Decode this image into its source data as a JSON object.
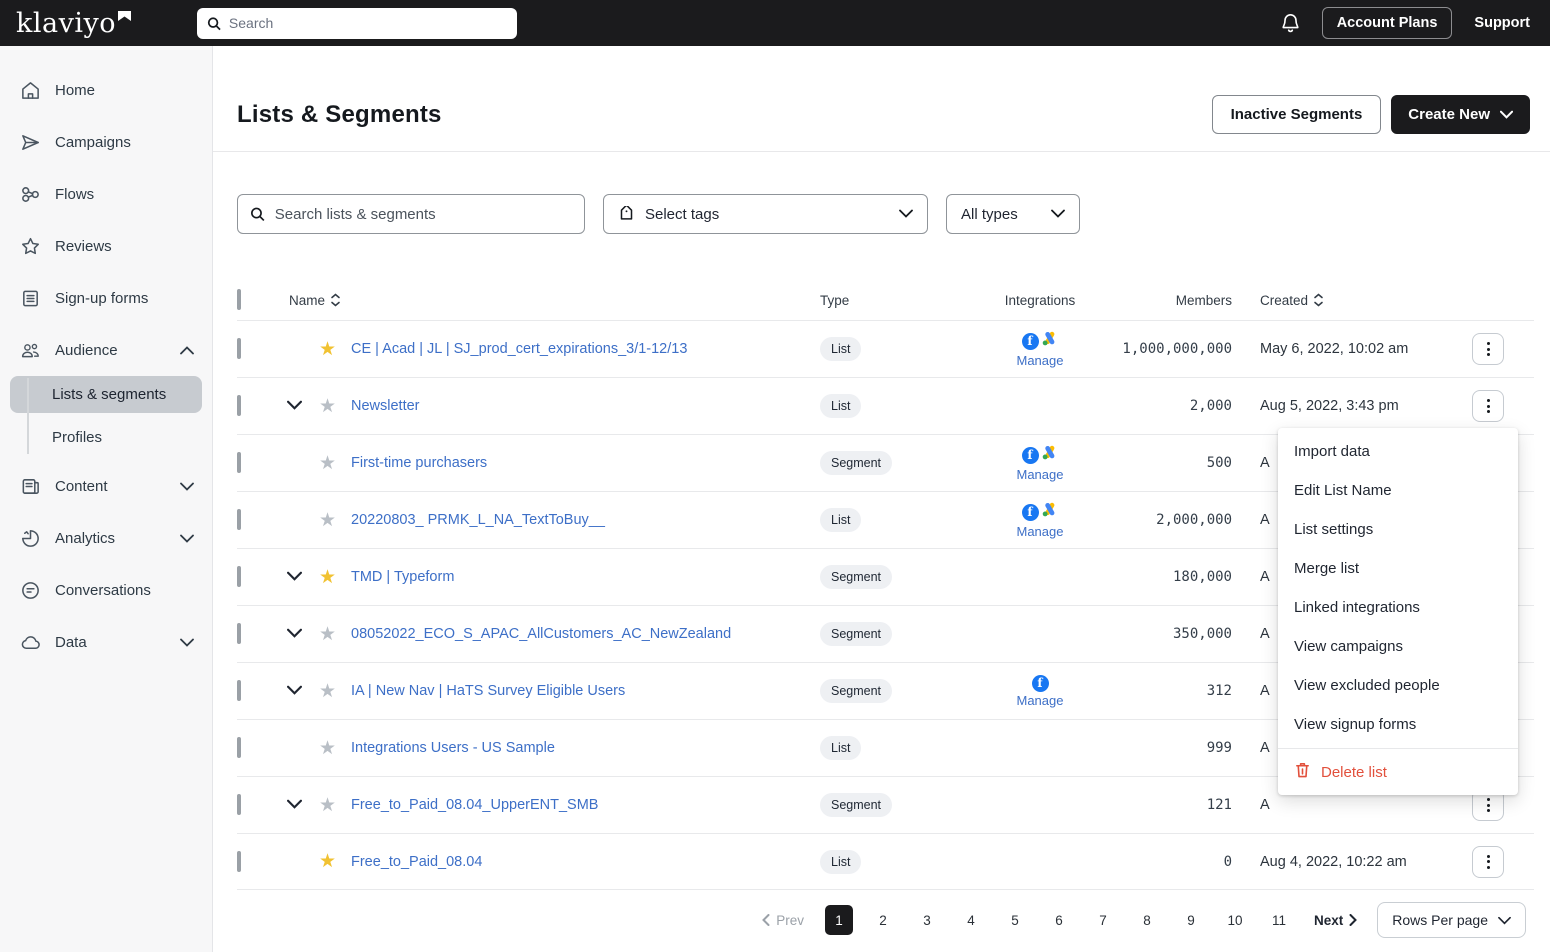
{
  "topbar": {
    "logo": "klaviyo",
    "search_placeholder": "Search",
    "account_plans_label": "Account Plans",
    "support_label": "Support"
  },
  "sidebar": {
    "items": [
      {
        "label": "Home",
        "icon": "home-icon",
        "chevron": null
      },
      {
        "label": "Campaigns",
        "icon": "campaigns-icon",
        "chevron": null
      },
      {
        "label": "Flows",
        "icon": "flows-icon",
        "chevron": null
      },
      {
        "label": "Reviews",
        "icon": "reviews-icon",
        "chevron": null
      },
      {
        "label": "Sign-up forms",
        "icon": "signup-forms-icon",
        "chevron": null
      },
      {
        "label": "Audience",
        "icon": "audience-icon",
        "chevron": "up"
      }
    ],
    "audience_children": [
      {
        "label": "Lists & segments",
        "selected": true
      },
      {
        "label": "Profiles",
        "selected": false
      }
    ],
    "items_after": [
      {
        "label": "Content",
        "icon": "content-icon",
        "chevron": "down"
      },
      {
        "label": "Analytics",
        "icon": "analytics-icon",
        "chevron": "down"
      },
      {
        "label": "Conversations",
        "icon": "conversations-icon",
        "chevron": null
      },
      {
        "label": "Data",
        "icon": "data-icon",
        "chevron": "down"
      }
    ]
  },
  "header": {
    "title": "Lists & Segments",
    "inactive_segments_label": "Inactive Segments",
    "create_new_label": "Create New"
  },
  "filters": {
    "search_placeholder": "Search lists & segments",
    "tags_label": "Select tags",
    "types_label": "All types"
  },
  "table": {
    "headers": {
      "name": "Name",
      "type": "Type",
      "integrations": "Integrations",
      "members": "Members",
      "created": "Created"
    },
    "manage_label": "Manage",
    "rows": [
      {
        "name": "CE | Acad | JL | SJ_prod_cert_expirations_3/1-12/13",
        "star": "yellow",
        "expandable": false,
        "type": "List",
        "integrations": [
          "facebook",
          "google"
        ],
        "manage": true,
        "members": "1,000,000,000",
        "created": "May 6, 2022, 10:02 am"
      },
      {
        "name": "Newsletter",
        "star": "gray",
        "expandable": true,
        "type": "List",
        "integrations": [],
        "manage": false,
        "members": "2,000",
        "created": "Aug 5, 2022, 3:43 pm"
      },
      {
        "name": "First-time purchasers",
        "star": "gray",
        "expandable": false,
        "type": "Segment",
        "integrations": [
          "facebook",
          "google"
        ],
        "manage": true,
        "members": "500",
        "created": "A"
      },
      {
        "name": "20220803_ PRMK_L_NA_TextToBuy__",
        "star": "gray",
        "expandable": false,
        "type": "List",
        "integrations": [
          "facebook",
          "google"
        ],
        "manage": true,
        "members": "2,000,000",
        "created": "A"
      },
      {
        "name": "TMD | Typeform",
        "star": "yellow",
        "expandable": true,
        "type": "Segment",
        "integrations": [],
        "manage": false,
        "members": "180,000",
        "created": "A"
      },
      {
        "name": "08052022_ECO_S_APAC_AllCustomers_AC_NewZealand",
        "star": "gray",
        "expandable": true,
        "type": "Segment",
        "integrations": [],
        "manage": false,
        "members": "350,000",
        "created": "A"
      },
      {
        "name": "IA | New Nav | HaTS Survey Eligible Users",
        "star": "gray",
        "expandable": true,
        "type": "Segment",
        "integrations": [
          "facebook"
        ],
        "manage": true,
        "members": "312",
        "created": "A"
      },
      {
        "name": "Integrations Users - US Sample",
        "star": "gray",
        "expandable": false,
        "type": "List",
        "integrations": [],
        "manage": false,
        "members": "999",
        "created": "A"
      },
      {
        "name": "Free_to_Paid_08.04_UpperENT_SMB",
        "star": "gray",
        "expandable": true,
        "type": "Segment",
        "integrations": [],
        "manage": false,
        "members": "121",
        "created": "A"
      },
      {
        "name": "Free_to_Paid_08.04",
        "star": "yellow",
        "expandable": false,
        "type": "List",
        "integrations": [],
        "manage": false,
        "members": "0",
        "created": "Aug 4, 2022, 10:22 am"
      }
    ]
  },
  "context_menu": {
    "items": [
      "Import data",
      "Edit List Name",
      "List settings",
      "Merge list",
      "Linked integrations",
      "View campaigns",
      "View excluded people",
      "View signup forms"
    ],
    "delete_label": "Delete list"
  },
  "pagination": {
    "prev_label": "Prev",
    "pages": [
      "1",
      "2",
      "3",
      "4",
      "5",
      "6",
      "7",
      "8",
      "9",
      "10",
      "11"
    ],
    "active_page": "1",
    "next_label": "Next",
    "rows_per_page_label": "Rows Per page"
  },
  "colors": {
    "topbar_bg": "#1b1b1d",
    "link_blue": "#3d6fc7",
    "star_yellow": "#f1c232",
    "star_gray": "#b9bfc6",
    "delete_red": "#e2503c",
    "facebook_blue": "#1877f2",
    "selected_nav_bg": "#c7cbd0"
  }
}
